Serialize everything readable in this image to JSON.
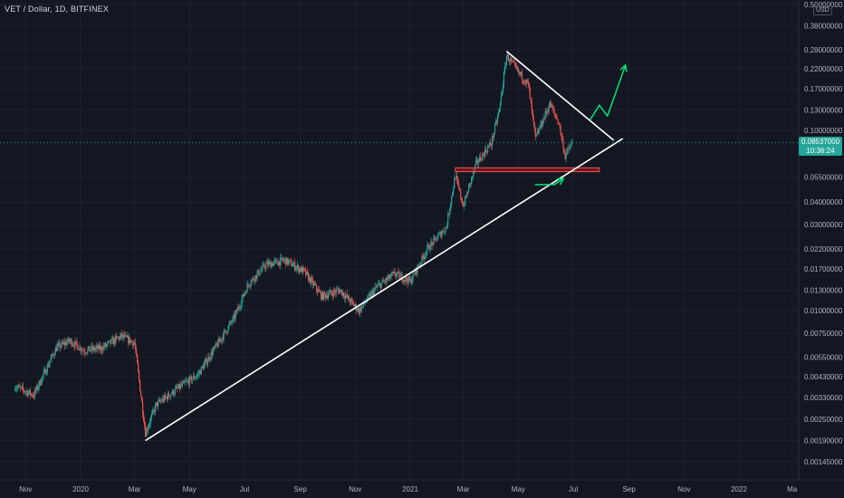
{
  "chart_data": {
    "type": "candlestick",
    "title": "VET / Dollar, 1D, BITFINEX",
    "currency": "USD",
    "scale": "log",
    "grid": true,
    "yticks": [
      "0.50000000",
      "0.38000000",
      "0.28000000",
      "0.22000000",
      "0.17000000",
      "0.13000000",
      "0.10000000",
      "0.05500000",
      "0.04000000",
      "0.03000000",
      "0.02200000",
      "0.01700000",
      "0.01300000",
      "0.01000000",
      "0.00750000",
      "0.00550000",
      "0.00430000",
      "0.00330000",
      "0.00250000",
      "0.00190000",
      "0.00145000"
    ],
    "xticks": [
      "Nov",
      "2020",
      "Mar",
      "May",
      "Jul",
      "Sep",
      "Nov",
      "2021",
      "Mar",
      "May",
      "Jul",
      "Sep",
      "Nov",
      "2022",
      "Ma"
    ],
    "current_price": {
      "price": "0.08537000",
      "countdown": "10:36:24"
    },
    "price_path": [
      [
        "2019-10-20",
        0.0038
      ],
      [
        "2019-11-10",
        0.0034
      ],
      [
        "2019-12-05",
        0.0062
      ],
      [
        "2019-12-20",
        0.0068
      ],
      [
        "2020-01-05",
        0.006
      ],
      [
        "2020-01-25",
        0.0062
      ],
      [
        "2020-02-15",
        0.0072
      ],
      [
        "2020-03-01",
        0.0066
      ],
      [
        "2020-03-13",
        0.0021
      ],
      [
        "2020-03-25",
        0.003
      ],
      [
        "2020-04-15",
        0.0036
      ],
      [
        "2020-05-10",
        0.0044
      ],
      [
        "2020-06-01",
        0.0065
      ],
      [
        "2020-06-20",
        0.0092
      ],
      [
        "2020-07-05",
        0.014
      ],
      [
        "2020-07-25",
        0.018
      ],
      [
        "2020-08-15",
        0.019
      ],
      [
        "2020-09-05",
        0.0165
      ],
      [
        "2020-09-25",
        0.012
      ],
      [
        "2020-10-15",
        0.013
      ],
      [
        "2020-11-05",
        0.01
      ],
      [
        "2020-11-25",
        0.0135
      ],
      [
        "2020-12-15",
        0.016
      ],
      [
        "2021-01-01",
        0.0145
      ],
      [
        "2021-01-20",
        0.022
      ],
      [
        "2021-02-10",
        0.029
      ],
      [
        "2021-02-20",
        0.056
      ],
      [
        "2021-03-01",
        0.038
      ],
      [
        "2021-03-15",
        0.065
      ],
      [
        "2021-04-01",
        0.085
      ],
      [
        "2021-04-10",
        0.13
      ],
      [
        "2021-04-18",
        0.26
      ],
      [
        "2021-05-01",
        0.21
      ],
      [
        "2021-05-12",
        0.18
      ],
      [
        "2021-05-20",
        0.09
      ],
      [
        "2021-05-27",
        0.11
      ],
      [
        "2021-06-05",
        0.14
      ],
      [
        "2021-06-15",
        0.11
      ],
      [
        "2021-06-22",
        0.072
      ],
      [
        "2021-06-30",
        0.0854
      ]
    ],
    "annotations": {
      "support_line": [
        [
          "2020-03-13",
          0.0019
        ],
        [
          "2021-08-25",
          0.09
        ]
      ],
      "resistance_line": [
        [
          "2021-04-18",
          0.275
        ],
        [
          "2021-08-15",
          0.088
        ]
      ],
      "support_zone": {
        "from": "2021-02-20",
        "to": "2021-07-30",
        "low": 0.059,
        "high": 0.062
      },
      "projection_arrow": [
        [
          "2021-07-20",
          0.115
        ],
        [
          "2021-07-30",
          0.138
        ],
        [
          "2021-08-08",
          0.12
        ],
        [
          "2021-08-28",
          0.23
        ]
      ],
      "bounce_arrow": [
        [
          "2021-05-20",
          0.05
        ],
        [
          "2021-06-10",
          0.05
        ],
        [
          "2021-06-20",
          0.054
        ]
      ]
    },
    "colors": {
      "up": "#26a69a",
      "down": "#ef5350",
      "line": "#ffffff",
      "arrow": "#00e676",
      "zone": "#b71c1c",
      "bg": "#131722"
    }
  }
}
